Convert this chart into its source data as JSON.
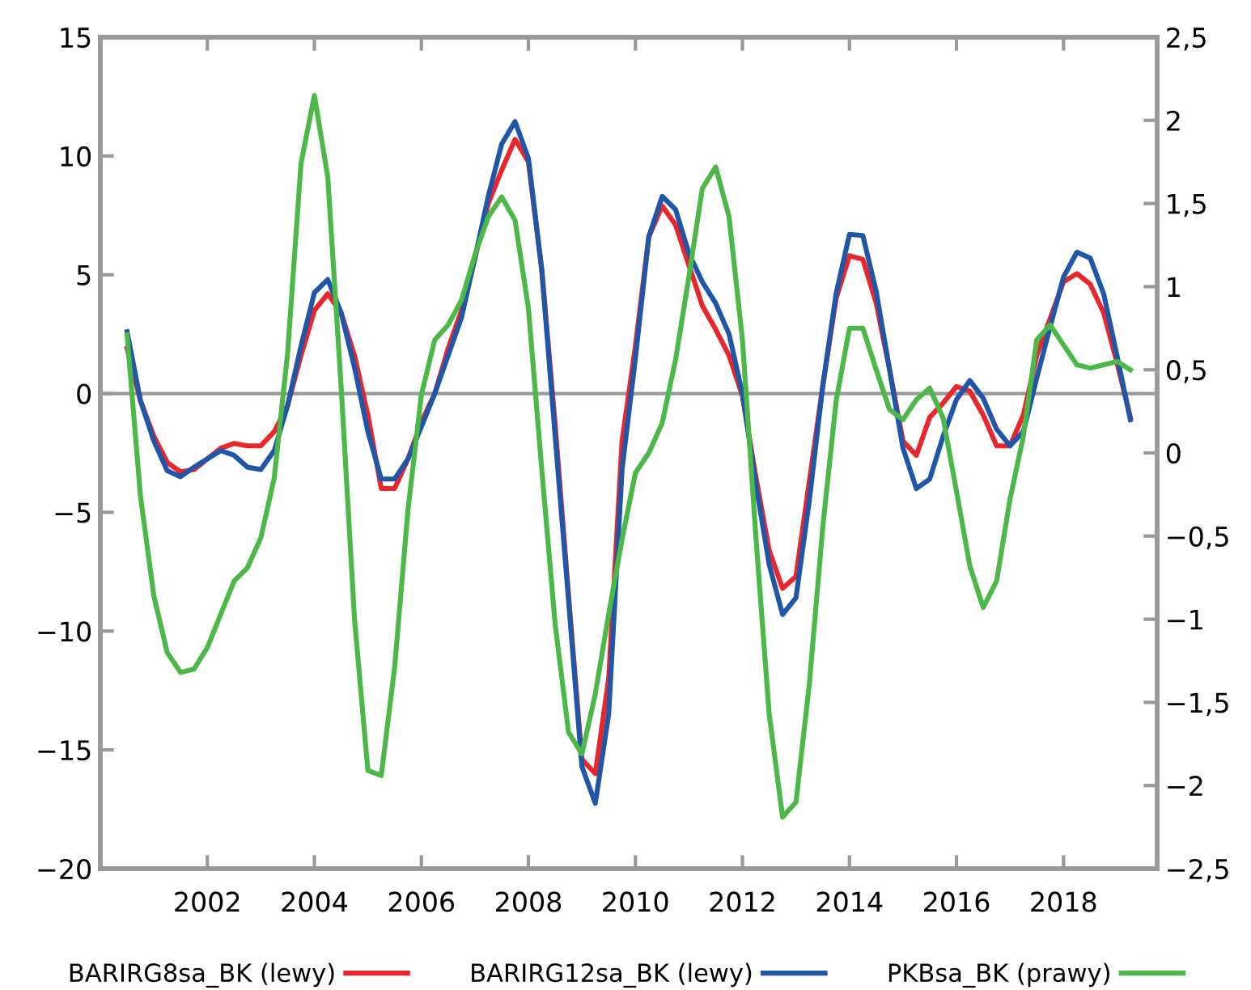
{
  "chart_data": {
    "type": "line",
    "x": [
      2000.5,
      2000.75,
      2001,
      2001.25,
      2001.5,
      2001.75,
      2002,
      2002.25,
      2002.5,
      2002.75,
      2003,
      2003.25,
      2003.5,
      2003.75,
      2004,
      2004.25,
      2004.5,
      2004.75,
      2005,
      2005.25,
      2005.5,
      2005.75,
      2006,
      2006.25,
      2006.5,
      2006.75,
      2007,
      2007.25,
      2007.5,
      2007.75,
      2008,
      2008.25,
      2008.5,
      2008.75,
      2009,
      2009.25,
      2009.5,
      2009.75,
      2010,
      2010.25,
      2010.5,
      2010.75,
      2011,
      2011.25,
      2011.5,
      2011.75,
      2012,
      2012.25,
      2012.5,
      2012.75,
      2013,
      2013.25,
      2013.5,
      2013.75,
      2014,
      2014.25,
      2014.5,
      2014.75,
      2015,
      2015.25,
      2015.5,
      2015.75,
      2016,
      2016.25,
      2016.5,
      2016.75,
      2017,
      2017.25,
      2017.5,
      2017.75,
      2018,
      2018.25,
      2018.5,
      2018.75,
      2019,
      2019.25
    ],
    "series": [
      {
        "name": "BARIRG8sa_BK (lewy)",
        "color": "#e8262b",
        "values": [
          1.9,
          -0.3,
          -1.8,
          -2.9,
          -3.3,
          -3.2,
          -2.75,
          -2.3,
          -2.1,
          -2.2,
          -2.2,
          -1.6,
          -0.5,
          1.6,
          3.5,
          4.2,
          3.4,
          1.6,
          -0.9,
          -4.0,
          -4.0,
          -2.75,
          -1.2,
          0,
          1.9,
          3.5,
          5.7,
          8.0,
          9.4,
          10.7,
          9.75,
          5.2,
          -1.3,
          -8.5,
          -15.4,
          -16.0,
          -12.0,
          -2.0,
          2.0,
          6.6,
          7.9,
          7.1,
          5.4,
          3.7,
          2.7,
          1.6,
          -0.1,
          -3.5,
          -6.6,
          -8.2,
          -7.7,
          -3.7,
          0.3,
          4.0,
          5.8,
          5.65,
          3.8,
          1.0,
          -2.0,
          -2.6,
          -1.0,
          -0.4,
          0.3,
          0.1,
          -0.9,
          -2.2,
          -2.2,
          -0.9,
          1.6,
          3.15,
          4.7,
          5.05,
          4.6,
          3.4,
          1.3,
          -1.0
        ]
      },
      {
        "name": "BARIRG12sa_BK (lewy)",
        "color": "#1f56a8",
        "values": [
          2.6,
          -0.3,
          -2.0,
          -3.25,
          -3.5,
          -3.1,
          -2.75,
          -2.4,
          -2.6,
          -3.1,
          -3.2,
          -2.4,
          -0.5,
          2.0,
          4.25,
          4.8,
          3.4,
          1.1,
          -1.6,
          -3.6,
          -3.6,
          -2.75,
          -1.4,
          0,
          1.6,
          3.2,
          5.7,
          8.3,
          10.5,
          11.45,
          9.9,
          5.2,
          -1.8,
          -8.7,
          -15.7,
          -17.25,
          -13.5,
          -3.2,
          1.5,
          6.6,
          8.3,
          7.75,
          5.9,
          4.7,
          3.8,
          2.5,
          0,
          -3.8,
          -7.2,
          -9.3,
          -8.6,
          -4.5,
          0.3,
          4.2,
          6.7,
          6.65,
          4.3,
          1.0,
          -2.3,
          -4.0,
          -3.6,
          -1.8,
          -0.25,
          0.55,
          -0.2,
          -1.5,
          -2.2,
          -1.6,
          0.65,
          2.8,
          4.9,
          5.95,
          5.7,
          4.2,
          1.6,
          -1.1
        ]
      },
      {
        "name": "PKBsa_BK (prawy)",
        "color": "#4cb848",
        "axis": "y2",
        "values": [
          0.71,
          -0.26,
          -0.86,
          -1.2,
          -1.32,
          -1.3,
          -1.17,
          -0.97,
          -0.77,
          -0.69,
          -0.51,
          -0.15,
          0.6,
          1.74,
          2.15,
          1.66,
          0.4,
          -1.0,
          -1.91,
          -1.94,
          -1.29,
          -0.34,
          0.35,
          0.68,
          0.77,
          0.92,
          1.19,
          1.42,
          1.54,
          1.4,
          0.87,
          -0.1,
          -1.03,
          -1.68,
          -1.81,
          -1.45,
          -0.97,
          -0.52,
          -0.12,
          0.0,
          0.18,
          0.56,
          1.06,
          1.59,
          1.72,
          1.42,
          0.68,
          -0.5,
          -1.57,
          -2.19,
          -2.1,
          -1.39,
          -0.45,
          0.31,
          0.75,
          0.75,
          0.5,
          0.26,
          0.2,
          0.32,
          0.39,
          0.21,
          -0.23,
          -0.68,
          -0.93,
          -0.77,
          -0.28,
          0.1,
          0.68,
          0.77,
          0.65,
          0.53,
          0.51,
          0.53,
          0.55,
          0.5
        ]
      }
    ],
    "xlim": [
      2000,
      2019.75
    ],
    "xticks": [
      2002,
      2004,
      2006,
      2008,
      2010,
      2012,
      2014,
      2016,
      2018
    ],
    "ylim": [
      -20,
      15
    ],
    "yticks": [
      {
        "value": -20,
        "label": "−20"
      },
      {
        "value": -15,
        "label": "−15"
      },
      {
        "value": -10,
        "label": "−10"
      },
      {
        "value": -5,
        "label": "−5"
      },
      0,
      5,
      10,
      15
    ],
    "y2lim": [
      -2.5,
      2.5
    ],
    "y2ticks": [
      {
        "value": -2.5,
        "label": "−2,5"
      },
      {
        "value": -2,
        "label": "−2"
      },
      {
        "value": -1.5,
        "label": "−1,5"
      },
      {
        "value": -1,
        "label": "−1"
      },
      {
        "value": -0.5,
        "label": "−0,5"
      },
      0,
      {
        "value": 0.5,
        "label": "0,5"
      },
      1,
      {
        "value": 1.5,
        "label": "1,5"
      },
      2,
      {
        "value": 2.5,
        "label": "2,5"
      }
    ],
    "ref_lines": [
      {
        "axis": "y",
        "value": 0,
        "color": "#999999"
      }
    ],
    "grid": false,
    "legend": "bottom",
    "marker": "none",
    "line_style": "solid"
  }
}
